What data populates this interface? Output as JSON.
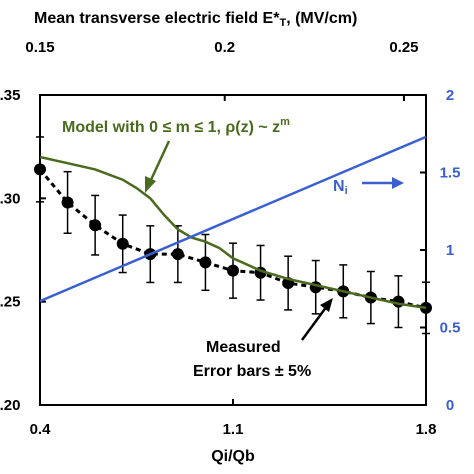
{
  "chart_data": {
    "type": "line",
    "top_axis": {
      "title": "Mean transverse electric field E*T, (MV/cm)",
      "ticks": [
        "0.15",
        "0.2",
        "0.25"
      ],
      "tick_x": [
        0.4,
        1.07,
        1.72
      ]
    },
    "xlabel": "Qi/Qb",
    "xlim": [
      0.4,
      1.8
    ],
    "x_ticks": [
      "0.4",
      "1.1",
      "1.8"
    ],
    "ylim": [
      0.2,
      0.35
    ],
    "y_ticks": [
      "0.20",
      "0.25",
      "0.30",
      "0.35"
    ],
    "y_tick_labels": [
      ".20",
      ".25",
      ".30",
      ".35"
    ],
    "y2lim": [
      0,
      2
    ],
    "y2_ticks": [
      "0",
      "0.5",
      "1",
      "1.5",
      "2"
    ],
    "series": [
      {
        "name": "Measured",
        "style": "dashed-markers",
        "color": "#000000",
        "error_bars": "± 5%",
        "x": [
          0.4,
          0.5,
          0.6,
          0.7,
          0.8,
          0.9,
          1.0,
          1.1,
          1.2,
          1.3,
          1.4,
          1.5,
          1.6,
          1.7,
          1.8
        ],
        "y": [
          0.314,
          0.298,
          0.287,
          0.278,
          0.273,
          0.273,
          0.269,
          0.265,
          0.264,
          0.259,
          0.257,
          0.255,
          0.252,
          0.25,
          0.247
        ],
        "err": [
          0.0157,
          0.0149,
          0.0144,
          0.0139,
          0.0137,
          0.0137,
          0.0135,
          0.0133,
          0.0132,
          0.013,
          0.0129,
          0.0128,
          0.0126,
          0.0125,
          0.0124
        ]
      },
      {
        "name": "Model with 0 ≤ m ≤ 1, ρ(z) ~ z^m",
        "style": "solid",
        "color": "#4a6b1e",
        "x": [
          0.4,
          0.5,
          0.6,
          0.7,
          0.75,
          0.8,
          0.85,
          0.9,
          0.95,
          1.0,
          1.05,
          1.1,
          1.2,
          1.3,
          1.4,
          1.5,
          1.6,
          1.7,
          1.8
        ],
        "y": [
          0.32,
          0.317,
          0.314,
          0.309,
          0.305,
          0.3,
          0.292,
          0.285,
          0.281,
          0.279,
          0.276,
          0.271,
          0.265,
          0.261,
          0.258,
          0.255,
          0.252,
          0.249,
          0.247
        ]
      },
      {
        "name": "Ni",
        "axis": "right",
        "style": "solid",
        "color": "#3a5fd0",
        "x": [
          0.4,
          1.8
        ],
        "y": [
          0.67,
          1.73
        ]
      }
    ],
    "annotations": {
      "model_label": "Model with 0 ≤ m ≤ 1, ρ(z) ~ zᵐ",
      "model_label_prefix": "Model with 0 ≤ m ≤ 1, ρ(z) ~ z",
      "model_label_sup": "m",
      "ni_label": "Ni",
      "ni_label_main": "N",
      "ni_label_sub": "i",
      "measured_line1": "Measured",
      "measured_line2": "Error bars ± 5%",
      "top_title_prefix": "Mean transverse electric field E*",
      "top_title_sub": "T",
      "top_title_suffix": ", (MV/cm)"
    },
    "colors": {
      "model": "#4a6b1e",
      "ni": "#3a5fd0",
      "measured": "#000000"
    }
  }
}
